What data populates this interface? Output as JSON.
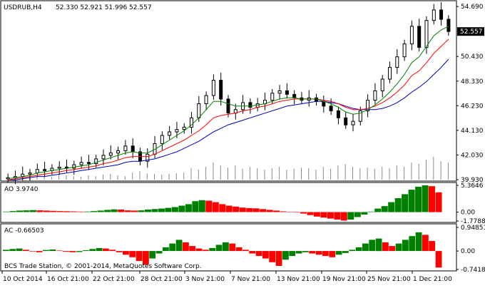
{
  "chart_data": [
    {
      "type": "candlestick",
      "panel": "main",
      "symbol_label": "USDRUB,H4",
      "ohlc_label": "52.330 52.921 51.996 52.557",
      "current_price": "52.557",
      "ylim": [
        39.93,
        55.0
      ],
      "y_ticks": [
        "54.690",
        "52.557",
        "50.430",
        "48.330",
        "46.230",
        "44.130",
        "42.030",
        "39.930"
      ],
      "x_ticks": [
        "10 Oct 2014",
        "16 Oct 21:00",
        "22 Oct 21:00",
        "28 Oct 21:00",
        "3 Nov 21:00",
        "7 Nov 21:00",
        "13 Nov 21:00",
        "19 Nov 21:00",
        "25 Nov 21:00",
        "1 Dec 21:00"
      ],
      "close_path": [
        40.1,
        40.2,
        40.4,
        40.5,
        40.8,
        40.7,
        40.9,
        41.0,
        40.9,
        41.2,
        41.4,
        41.3,
        41.7,
        42.0,
        42.2,
        42.4,
        42.8,
        42.3,
        41.5,
        42.1,
        43.0,
        43.7,
        44.0,
        44.2,
        44.4,
        45.2,
        46.4,
        47.1,
        48.4,
        46.8,
        45.6,
        45.9,
        46.5,
        46.1,
        46.4,
        46.7,
        47.3,
        47.5,
        47.2,
        46.9,
        46.7,
        46.9,
        46.6,
        46.2,
        45.8,
        45.2,
        44.6,
        44.9,
        45.8,
        46.7,
        47.5,
        48.5,
        49.5,
        50.4,
        51.5,
        53.0,
        51.2,
        53.5,
        54.4,
        53.6,
        52.557
      ],
      "ma_fast": [
        40.0,
        40.1,
        40.2,
        40.3,
        40.5,
        40.6,
        40.7,
        40.8,
        40.9,
        41.0,
        41.1,
        41.2,
        41.4,
        41.6,
        41.8,
        42.0,
        42.2,
        42.3,
        42.2,
        42.2,
        42.5,
        42.9,
        43.3,
        43.7,
        44.1,
        44.6,
        45.2,
        45.9,
        46.6,
        46.6,
        46.4,
        46.2,
        46.2,
        46.2,
        46.3,
        46.4,
        46.6,
        46.8,
        46.9,
        46.9,
        46.8,
        46.8,
        46.8,
        46.6,
        46.4,
        46.1,
        45.7,
        45.5,
        45.6,
        45.9,
        46.3,
        46.8,
        47.4,
        48.1,
        48.9,
        49.9,
        50.4,
        51.3,
        52.2,
        52.7,
        53.0
      ],
      "ma_mid": [
        39.9,
        40.0,
        40.1,
        40.2,
        40.3,
        40.4,
        40.5,
        40.6,
        40.7,
        40.8,
        40.9,
        41.0,
        41.1,
        41.3,
        41.4,
        41.6,
        41.8,
        41.9,
        41.9,
        41.9,
        42.1,
        42.4,
        42.7,
        43.0,
        43.3,
        43.7,
        44.1,
        44.6,
        45.2,
        45.4,
        45.5,
        45.6,
        45.8,
        45.9,
        46.1,
        46.2,
        46.4,
        46.6,
        46.7,
        46.8,
        46.8,
        46.8,
        46.8,
        46.7,
        46.6,
        46.4,
        46.1,
        45.9,
        45.9,
        46.0,
        46.2,
        46.5,
        46.9,
        47.4,
        48.0,
        48.8,
        49.2,
        49.9,
        50.7,
        51.3,
        51.9
      ],
      "ma_slow": [
        39.9,
        39.9,
        40.0,
        40.1,
        40.2,
        40.2,
        40.3,
        40.4,
        40.5,
        40.6,
        40.7,
        40.8,
        40.9,
        41.0,
        41.1,
        41.2,
        41.4,
        41.5,
        41.5,
        41.6,
        41.7,
        41.9,
        42.1,
        42.3,
        42.6,
        42.9,
        43.2,
        43.6,
        44.0,
        44.3,
        44.6,
        44.8,
        45.0,
        45.2,
        45.4,
        45.6,
        45.8,
        46.0,
        46.2,
        46.3,
        46.4,
        46.5,
        46.6,
        46.6,
        46.5,
        46.4,
        46.2,
        46.0,
        45.9,
        45.9,
        45.9,
        46.0,
        46.2,
        46.5,
        46.9,
        47.4,
        47.8,
        48.3,
        48.9,
        49.5,
        50.2
      ],
      "volume": [
        0.1,
        0.12,
        0.08,
        0.15,
        0.1,
        0.12,
        0.1,
        0.18,
        0.15,
        0.12,
        0.1,
        0.15,
        0.12,
        0.18,
        0.2,
        0.15,
        0.12,
        0.25,
        0.3,
        0.22,
        0.2,
        0.18,
        0.2,
        0.22,
        0.25,
        0.4,
        0.35,
        0.45,
        0.6,
        0.5,
        0.42,
        0.5,
        0.38,
        0.45,
        0.4,
        0.35,
        0.4,
        0.45,
        0.35,
        0.38,
        0.42,
        0.4,
        0.35,
        0.45,
        0.38,
        0.5,
        0.55,
        0.45,
        0.4,
        0.42,
        0.38,
        0.45,
        0.4,
        0.5,
        0.45,
        0.6,
        0.55,
        0.7,
        0.8,
        0.65,
        0.6
      ]
    },
    {
      "type": "histogram",
      "panel": "ao",
      "label": "AO 3.9740",
      "y_ticks": [
        "5.3646",
        "0.00",
        "-1.7788"
      ],
      "ylim": [
        -1.7788,
        5.3646
      ],
      "values": [
        0.1,
        0.2,
        0.3,
        0.35,
        0.4,
        0.35,
        0.3,
        0.25,
        0.2,
        0.18,
        0.15,
        0.1,
        0.12,
        0.2,
        0.3,
        0.45,
        0.55,
        0.5,
        0.35,
        0.3,
        0.35,
        0.5,
        0.6,
        0.7,
        0.85,
        1.0,
        1.3,
        1.6,
        2.2,
        2.4,
        2.3,
        2.0,
        1.6,
        1.3,
        1.1,
        0.9,
        0.8,
        0.75,
        0.6,
        0.45,
        0.3,
        0.15,
        0.05,
        -0.1,
        -0.3,
        -0.6,
        -0.9,
        -1.1,
        -1.3,
        -1.5,
        -1.7,
        -1.5,
        -1.0,
        -0.5,
        0.1,
        0.7,
        1.2,
        2.0,
        2.8,
        3.6,
        4.5,
        5.1,
        5.36,
        5.2,
        3.97
      ]
    },
    {
      "type": "histogram",
      "panel": "ac",
      "label": "AC -0.66503",
      "y_ticks": [
        "0.94851",
        "0.00",
        "-0.74187"
      ],
      "ylim": [
        -0.74187,
        0.94851
      ],
      "values": [
        0.05,
        0.08,
        0.1,
        0.05,
        -0.02,
        -0.05,
        0.04,
        0.06,
        0.02,
        -0.03,
        -0.05,
        -0.04,
        0.03,
        0.08,
        0.12,
        0.1,
        0.05,
        -0.05,
        -0.15,
        -0.25,
        -0.4,
        -0.55,
        -0.3,
        -0.1,
        0.15,
        0.3,
        0.45,
        0.35,
        0.2,
        0.1,
        0.05,
        0.12,
        0.25,
        0.35,
        0.3,
        0.15,
        0.05,
        -0.1,
        -0.2,
        -0.3,
        -0.45,
        -0.6,
        -0.35,
        -0.2,
        -0.1,
        -0.05,
        -0.1,
        -0.15,
        -0.2,
        -0.25,
        -0.15,
        -0.08,
        0.05,
        0.15,
        0.3,
        0.45,
        0.5,
        0.35,
        0.2,
        0.3,
        0.45,
        0.6,
        0.75,
        0.65,
        0.4,
        -0.665
      ]
    }
  ],
  "chart_colors": {
    "bull": "#008000",
    "bear": "#ff0000",
    "candle": "#000000",
    "ma_fast": "#008000",
    "ma_mid": "#ff0000",
    "ma_slow": "#0000c0",
    "volume": "#8a8a8a",
    "price_label_bg": "#000000",
    "price_label_text": "#ffffff"
  },
  "footer": {
    "copyright": "BCS Trade Station, © 2001-2014, MetaQuotes Software Corp."
  }
}
